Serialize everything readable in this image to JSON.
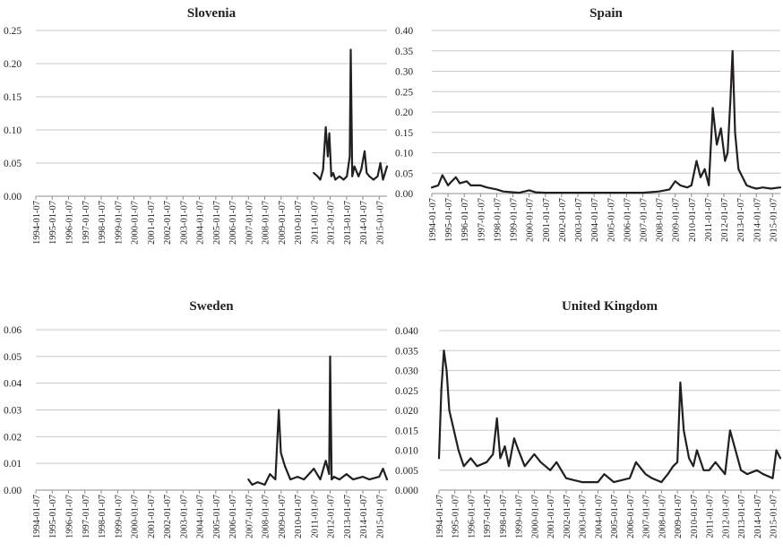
{
  "colors": {
    "line": "#231f20",
    "grid": "#c8c8c8",
    "axis": "#8c8c8c",
    "background": "#ffffff"
  },
  "x_tick_labels": [
    "1994-01-07",
    "1995-01-07",
    "1996-01-07",
    "1997-01-07",
    "1998-01-07",
    "1999-01-07",
    "2000-01-07",
    "2001-01-07",
    "2002-01-07",
    "2003-01-07",
    "2004-01-07",
    "2005-01-07",
    "2006-01-07",
    "2007-01-07",
    "2008-01-07",
    "2009-01-07",
    "2010-01-07",
    "2011-01-07",
    "2012-01-07",
    "2013-01-07",
    "2014-01-07",
    "2015-01-07"
  ],
  "chart_data": [
    {
      "type": "line",
      "title": "Slovenia",
      "xlabel": "",
      "ylabel": "",
      "xlim": [
        "1994-01-07",
        "2015-06-30"
      ],
      "ylim": [
        0,
        0.25
      ],
      "y_ticks": [
        "0.00",
        "0.05",
        "0.10",
        "0.15",
        "0.20",
        "0.25"
      ],
      "y_tick_values": [
        0,
        0.05,
        0.1,
        0.15,
        0.2,
        0.25
      ],
      "grid": true,
      "series": [
        {
          "x": [
            "2011-01-07",
            "2011-04-01",
            "2011-06-01",
            "2011-08-01",
            "2011-10-01",
            "2011-11-15",
            "2011-12-20",
            "2012-02-01",
            "2012-03-15",
            "2012-05-01",
            "2012-08-01",
            "2012-11-01",
            "2013-01-15",
            "2013-03-20",
            "2013-04-10",
            "2013-05-15",
            "2013-07-01",
            "2013-10-01",
            "2013-12-01",
            "2014-02-15",
            "2014-04-01",
            "2014-06-01",
            "2014-09-01",
            "2014-12-01",
            "2015-02-01",
            "2015-04-01",
            "2015-06-30"
          ],
          "y": [
            0.035,
            0.03,
            0.025,
            0.04,
            0.104,
            0.06,
            0.095,
            0.03,
            0.035,
            0.025,
            0.03,
            0.025,
            0.03,
            0.06,
            0.221,
            0.03,
            0.045,
            0.03,
            0.04,
            0.068,
            0.035,
            0.03,
            0.025,
            0.03,
            0.05,
            0.025,
            0.045
          ]
        }
      ]
    },
    {
      "type": "line",
      "title": "Spain",
      "xlabel": "",
      "ylabel": "",
      "xlim": [
        "1994-01-07",
        "2015-06-30"
      ],
      "ylim": [
        0,
        0.4
      ],
      "y_ticks": [
        "0.00",
        "0.05",
        "0.10",
        "0.15",
        "0.20",
        "0.25",
        "0.30",
        "0.35",
        "0.40"
      ],
      "y_tick_values": [
        0,
        0.05,
        0.1,
        0.15,
        0.2,
        0.25,
        0.3,
        0.35,
        0.4
      ],
      "grid": true,
      "series": [
        {
          "x": [
            "1994-01-07",
            "1994-06-01",
            "1994-09-01",
            "1995-01-07",
            "1995-04-01",
            "1995-07-01",
            "1995-10-01",
            "1996-03-01",
            "1996-06-01",
            "1997-01-07",
            "1997-06-01",
            "1998-01-07",
            "1998-06-01",
            "1999-01-07",
            "1999-06-01",
            "2000-01-07",
            "2000-06-01",
            "2001-01-07",
            "2002-01-07",
            "2003-01-07",
            "2004-01-07",
            "2005-01-07",
            "2006-01-07",
            "2007-01-07",
            "2008-01-07",
            "2008-09-01",
            "2009-01-07",
            "2009-05-01",
            "2009-10-01",
            "2010-01-07",
            "2010-05-01",
            "2010-08-01",
            "2010-11-01",
            "2011-02-01",
            "2011-05-01",
            "2011-08-01",
            "2011-11-01",
            "2012-02-01",
            "2012-04-01",
            "2012-06-01",
            "2012-07-20",
            "2012-09-15",
            "2012-12-01",
            "2013-03-01",
            "2013-06-01",
            "2013-10-01",
            "2014-01-07",
            "2014-06-01",
            "2014-12-01",
            "2015-06-30"
          ],
          "y": [
            0.015,
            0.02,
            0.045,
            0.02,
            0.03,
            0.04,
            0.025,
            0.03,
            0.02,
            0.02,
            0.015,
            0.01,
            0.005,
            0.003,
            0.002,
            0.008,
            0.003,
            0.002,
            0.002,
            0.002,
            0.002,
            0.002,
            0.002,
            0.002,
            0.005,
            0.01,
            0.03,
            0.02,
            0.015,
            0.02,
            0.08,
            0.04,
            0.06,
            0.02,
            0.21,
            0.12,
            0.16,
            0.08,
            0.1,
            0.23,
            0.35,
            0.15,
            0.06,
            0.04,
            0.02,
            0.015,
            0.012,
            0.015,
            0.012,
            0.015
          ]
        }
      ]
    },
    {
      "type": "line",
      "title": "Sweden",
      "xlabel": "",
      "ylabel": "",
      "xlim": [
        "1994-01-07",
        "2015-06-30"
      ],
      "ylim": [
        0,
        0.06
      ],
      "y_ticks": [
        "0.00",
        "0.01",
        "0.02",
        "0.03",
        "0.04",
        "0.05",
        "0.06"
      ],
      "y_tick_values": [
        0,
        0.01,
        0.02,
        0.03,
        0.04,
        0.05,
        0.06
      ],
      "grid": true,
      "series": [
        {
          "x": [
            "2007-01-07",
            "2007-04-01",
            "2007-08-01",
            "2008-01-07",
            "2008-05-01",
            "2008-09-01",
            "2008-11-15",
            "2009-01-01",
            "2009-04-01",
            "2009-08-01",
            "2010-01-07",
            "2010-06-01",
            "2011-01-07",
            "2011-06-01",
            "2011-10-01",
            "2011-12-15",
            "2012-01-07",
            "2012-02-10",
            "2012-04-01",
            "2012-08-01",
            "2013-01-07",
            "2013-06-01",
            "2014-01-07",
            "2014-06-01",
            "2015-01-07",
            "2015-04-01",
            "2015-06-30"
          ],
          "y": [
            0.004,
            0.002,
            0.003,
            0.002,
            0.006,
            0.004,
            0.03,
            0.014,
            0.009,
            0.004,
            0.005,
            0.004,
            0.008,
            0.004,
            0.011,
            0.006,
            0.05,
            0.004,
            0.005,
            0.004,
            0.006,
            0.004,
            0.005,
            0.004,
            0.005,
            0.008,
            0.004
          ]
        }
      ]
    },
    {
      "type": "line",
      "title": "United Kingdom",
      "xlabel": "",
      "ylabel": "",
      "xlim": [
        "1994-01-07",
        "2015-06-30"
      ],
      "ylim": [
        0,
        0.04
      ],
      "y_ticks": [
        "0.000",
        "0.005",
        "0.010",
        "0.015",
        "0.020",
        "0.025",
        "0.030",
        "0.035",
        "0.040"
      ],
      "y_tick_values": [
        0,
        0.005,
        0.01,
        0.015,
        0.02,
        0.025,
        0.03,
        0.035,
        0.04
      ],
      "grid": true,
      "series": [
        {
          "x": [
            "1994-01-07",
            "1994-03-01",
            "1994-05-01",
            "1994-07-01",
            "1994-09-01",
            "1995-01-07",
            "1995-04-01",
            "1995-08-01",
            "1996-01-07",
            "1996-06-01",
            "1997-01-07",
            "1997-06-01",
            "1997-09-01",
            "1997-11-15",
            "1998-03-01",
            "1998-06-01",
            "1998-10-01",
            "1999-01-07",
            "1999-06-01",
            "2000-01-07",
            "2000-06-01",
            "2001-01-07",
            "2001-06-01",
            "2002-01-07",
            "2003-01-07",
            "2004-01-07",
            "2004-06-01",
            "2005-01-07",
            "2006-01-07",
            "2006-06-01",
            "2007-01-07",
            "2007-06-01",
            "2008-01-07",
            "2008-06-01",
            "2008-10-01",
            "2009-01-07",
            "2009-03-15",
            "2009-06-01",
            "2009-10-01",
            "2010-01-07",
            "2010-04-01",
            "2010-09-01",
            "2011-01-07",
            "2011-06-01",
            "2012-01-07",
            "2012-05-01",
            "2013-01-07",
            "2013-06-01",
            "2014-01-07",
            "2014-06-01",
            "2015-01-07",
            "2015-04-01",
            "2015-06-30"
          ],
          "y": [
            0.008,
            0.025,
            0.035,
            0.03,
            0.02,
            0.014,
            0.01,
            0.006,
            0.008,
            0.006,
            0.007,
            0.009,
            0.018,
            0.008,
            0.011,
            0.006,
            0.013,
            0.01,
            0.006,
            0.009,
            0.007,
            0.005,
            0.007,
            0.003,
            0.002,
            0.002,
            0.004,
            0.002,
            0.003,
            0.007,
            0.004,
            0.003,
            0.002,
            0.004,
            0.006,
            0.007,
            0.027,
            0.015,
            0.008,
            0.006,
            0.01,
            0.005,
            0.005,
            0.007,
            0.004,
            0.015,
            0.005,
            0.004,
            0.005,
            0.004,
            0.003,
            0.01,
            0.008
          ]
        }
      ]
    }
  ]
}
